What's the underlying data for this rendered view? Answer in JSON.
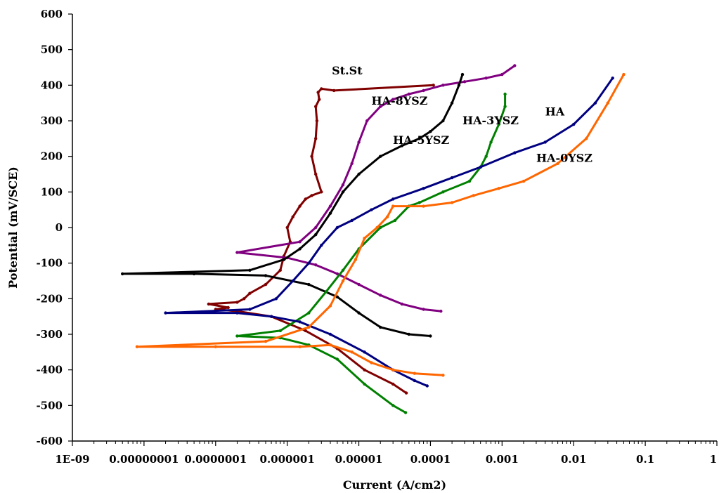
{
  "chart_data": {
    "type": "line",
    "title": "",
    "xlabel": "Current (A/cm2)",
    "ylabel": "Potential (mV/SCE)",
    "xscale": "log",
    "xlim": [
      1e-09,
      1
    ],
    "ylim": [
      -600,
      600
    ],
    "x_ticks": [
      {
        "value": 1e-09,
        "label": "1E-09"
      },
      {
        "value": 1e-08,
        "label": "0.00000001"
      },
      {
        "value": 1e-07,
        "label": "0.0000001"
      },
      {
        "value": 1e-06,
        "label": "0.000001"
      },
      {
        "value": 1e-05,
        "label": "0.00001"
      },
      {
        "value": 0.0001,
        "label": "0.0001"
      },
      {
        "value": 0.001,
        "label": "0.001"
      },
      {
        "value": 0.01,
        "label": "0.01"
      },
      {
        "value": 0.1,
        "label": "0.1"
      },
      {
        "value": 1,
        "label": "1"
      }
    ],
    "y_ticks": [
      {
        "value": 600,
        "label": "600"
      },
      {
        "value": 500,
        "label": "500"
      },
      {
        "value": 400,
        "label": "400"
      },
      {
        "value": 300,
        "label": "300"
      },
      {
        "value": 200,
        "label": "200"
      },
      {
        "value": 100,
        "label": "100"
      },
      {
        "value": 0,
        "label": "0"
      },
      {
        "value": -100,
        "label": "-100"
      },
      {
        "value": -200,
        "label": "-200"
      },
      {
        "value": -300,
        "label": "-300"
      },
      {
        "value": -400,
        "label": "-400"
      },
      {
        "value": -500,
        "label": "-500"
      },
      {
        "value": -600,
        "label": "-600"
      }
    ],
    "grid": false,
    "series": [
      {
        "name": "St.St",
        "color": "#800000",
        "x": [
          4.6e-05,
          3e-05,
          1.2e-05,
          5e-06,
          1.8e-06,
          6e-07,
          2e-07,
          1e-07,
          1.5e-07,
          8e-08,
          2e-07,
          2.5e-07,
          3e-07,
          5e-07,
          8e-07,
          9e-07,
          1.1e-06,
          1e-06,
          1.2e-06,
          1.5e-06,
          1.8e-06,
          2.2e-06,
          3e-06,
          2.5e-06,
          2.2e-06,
          2.5e-06,
          2.6e-06,
          2.5e-06,
          2.8e-06,
          2.7e-06,
          3e-06,
          4.5e-06,
          0.00011
        ],
        "y": [
          -465,
          -440,
          -400,
          -340,
          -290,
          -250,
          -235,
          -230,
          -225,
          -215,
          -210,
          -200,
          -185,
          -160,
          -120,
          -80,
          -40,
          0,
          30,
          60,
          80,
          90,
          100,
          150,
          200,
          250,
          300,
          340,
          360,
          380,
          390,
          385,
          400
        ],
        "label": "St.St",
        "label_at": [
          4.2e-06,
          430
        ]
      },
      {
        "name": "HA-8YSZ",
        "color": "#800080",
        "x": [
          0.00014,
          8e-05,
          4e-05,
          2e-05,
          1e-05,
          5e-06,
          2.5e-06,
          1e-06,
          2e-07,
          1.5e-06,
          2.5e-06,
          4e-06,
          6e-06,
          8e-06,
          1e-05,
          1.3e-05,
          2e-05,
          3e-05,
          5e-05,
          8e-05,
          0.00015,
          0.0003,
          0.0006,
          0.001,
          0.0015
        ],
        "y": [
          -235,
          -230,
          -215,
          -190,
          -160,
          -130,
          -105,
          -85,
          -70,
          -40,
          0,
          60,
          120,
          180,
          240,
          300,
          340,
          360,
          375,
          385,
          400,
          410,
          420,
          430,
          455
        ],
        "label": "HA-8YSZ",
        "label_at": [
          1.5e-05,
          345
        ]
      },
      {
        "name": "HA-5YSZ",
        "color": "#000000",
        "x": [
          0.0001,
          5e-05,
          2e-05,
          1e-05,
          5e-06,
          2e-06,
          5e-07,
          5e-08,
          5e-09,
          3e-07,
          9e-07,
          1.5e-06,
          2.5e-06,
          4e-06,
          6e-06,
          1e-05,
          2e-05,
          4e-05,
          7e-05,
          0.0001,
          0.00015,
          0.0002,
          0.00025,
          0.00028
        ],
        "y": [
          -305,
          -300,
          -280,
          -240,
          -195,
          -160,
          -135,
          -130,
          -130,
          -120,
          -90,
          -60,
          -20,
          40,
          100,
          150,
          200,
          230,
          250,
          270,
          300,
          350,
          400,
          430
        ],
        "label": "HA-5YSZ",
        "label_at": [
          3e-05,
          235
        ]
      },
      {
        "name": "HA-3YSZ",
        "color": "#008000",
        "x": [
          4.5e-05,
          3e-05,
          1.2e-05,
          5e-06,
          2e-06,
          8e-07,
          2e-07,
          8e-07,
          2e-06,
          3.5e-06,
          6e-06,
          1e-05,
          2e-05,
          3.2e-05,
          5e-05,
          7e-05,
          0.00015,
          0.00035,
          0.0005,
          0.0006,
          0.0007,
          0.0009,
          0.0011,
          0.0011
        ],
        "y": [
          -520,
          -500,
          -440,
          -370,
          -330,
          -310,
          -305,
          -290,
          -240,
          -180,
          -120,
          -60,
          0,
          20,
          60,
          70,
          100,
          130,
          170,
          200,
          240,
          290,
          340,
          375
        ],
        "label": "HA-3YSZ",
        "label_at": [
          0.00028,
          290
        ]
      },
      {
        "name": "HA",
        "color": "#000080",
        "x": [
          9e-05,
          6e-05,
          3e-05,
          1.2e-05,
          4e-06,
          1.5e-06,
          6e-07,
          2e-07,
          2e-08,
          3e-07,
          7e-07,
          1.2e-06,
          2e-06,
          3e-06,
          5e-06,
          8e-06,
          1.5e-05,
          3e-05,
          8e-05,
          0.0002,
          0.0005,
          0.0015,
          0.004,
          0.01,
          0.02,
          0.035
        ],
        "y": [
          -445,
          -430,
          -400,
          -350,
          -300,
          -265,
          -250,
          -240,
          -240,
          -230,
          -200,
          -150,
          -100,
          -50,
          0,
          20,
          50,
          80,
          110,
          140,
          170,
          210,
          240,
          290,
          350,
          420
        ],
        "label": "HA",
        "label_at": [
          0.004,
          315
        ]
      },
      {
        "name": "HA-0YSZ",
        "color": "#FF6600",
        "x": [
          0.00015,
          6e-05,
          3e-05,
          1.5e-05,
          8e-06,
          4e-06,
          1.5e-06,
          1e-07,
          8e-09,
          5e-07,
          2e-06,
          4e-06,
          6e-06,
          9e-06,
          1.2e-05,
          1.8e-05,
          2.5e-05,
          3e-05,
          8e-05,
          0.0002,
          0.0004,
          0.0009,
          0.002,
          0.006,
          0.015,
          0.03,
          0.05
        ],
        "y": [
          -415,
          -410,
          -400,
          -380,
          -350,
          -330,
          -335,
          -335,
          -335,
          -320,
          -280,
          -220,
          -150,
          -90,
          -30,
          0,
          30,
          60,
          60,
          70,
          90,
          110,
          130,
          180,
          250,
          350,
          430
        ],
        "label": "HA-0YSZ",
        "label_at": [
          0.003,
          185
        ]
      }
    ]
  }
}
